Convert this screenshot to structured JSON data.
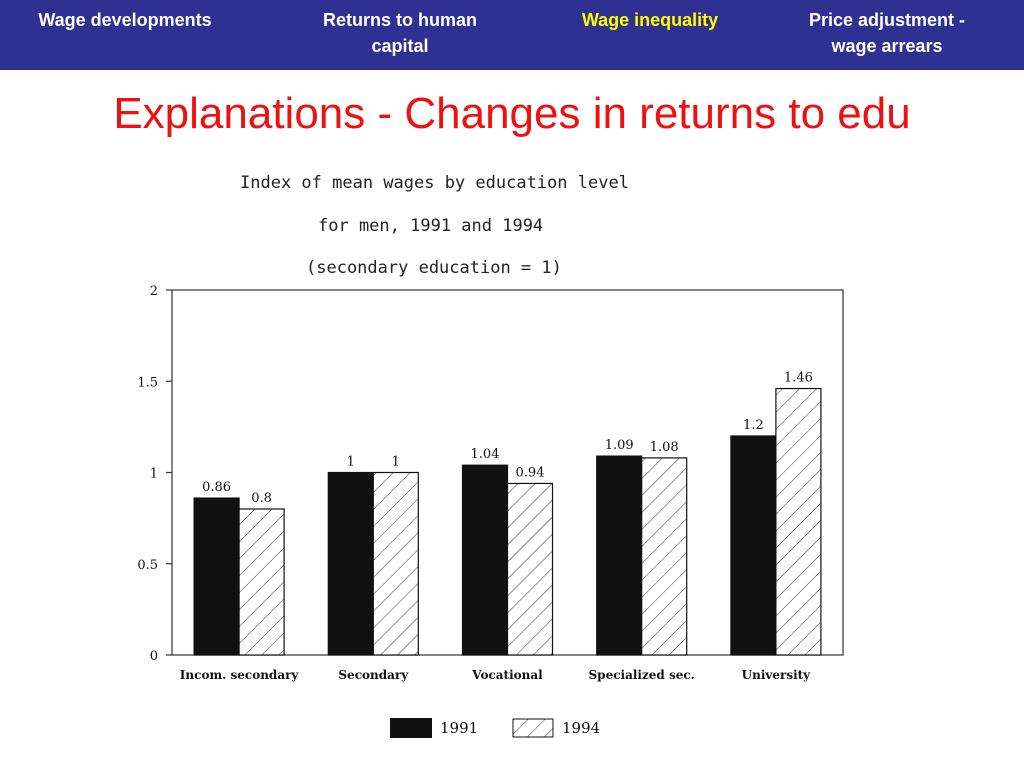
{
  "nav": {
    "items": [
      {
        "label": "Wage developments",
        "active": false
      },
      {
        "label": "Returns to human\ncapital",
        "active": false
      },
      {
        "label": "Wage inequality",
        "active": true
      },
      {
        "label": "Price adjustment -\nwage arrears",
        "active": false
      }
    ]
  },
  "slide": {
    "title": "Explanations - Changes in returns to edu"
  },
  "chart_data": {
    "type": "bar",
    "title_lines": [
      "Index of mean wages by education level",
      "for men, 1991 and 1994",
      "(secondary education = 1)"
    ],
    "categories": [
      "Incom. secondary",
      "Secondary",
      "Vocational",
      "Specialized sec.",
      "University"
    ],
    "series": [
      {
        "name": "1991",
        "values": [
          0.86,
          1,
          1.04,
          1.09,
          1.2
        ],
        "labels": [
          "0.86",
          "1",
          "1.04",
          "1.09",
          "1.2"
        ],
        "fill": "solid",
        "color": "#111111"
      },
      {
        "name": "1994",
        "values": [
          0.8,
          1,
          0.94,
          1.08,
          1.46
        ],
        "labels": [
          "0.8",
          "1",
          "0.94",
          "1.08",
          "1.46"
        ],
        "fill": "hatched",
        "color": "#111111"
      }
    ],
    "yticks": [
      "0",
      "0.5",
      "1",
      "1.5",
      "2"
    ],
    "ylim": [
      0,
      2
    ],
    "grid": false,
    "legend": "bottom"
  },
  "colors": {
    "nav_bg": "#2e3192",
    "nav_text": "#ffffff",
    "nav_active": "#ffff00",
    "title": "#ee1111"
  }
}
